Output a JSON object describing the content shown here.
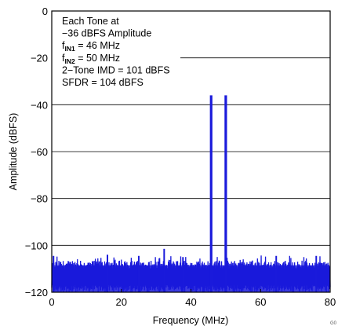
{
  "chart_data": {
    "type": "line",
    "xlabel": "Frequency (MHz)",
    "ylabel": "Amplitude (dBFS)",
    "xlim": [
      0,
      80
    ],
    "ylim": [
      -120,
      0
    ],
    "xticks": [
      0,
      20,
      40,
      60,
      80
    ],
    "yticks": [
      0,
      -20,
      -40,
      -60,
      -80,
      -100,
      -120
    ],
    "grid": true,
    "annotation": [
      {
        "base": "Each Tone at",
        "sub": "",
        "rest": ""
      },
      {
        "base": "−36 dBFS Amplitude",
        "sub": "",
        "rest": ""
      },
      {
        "base": "f",
        "sub": "IN1",
        "rest": " = 46 MHz"
      },
      {
        "base": "f",
        "sub": "IN2",
        "rest": " = 50 MHz"
      },
      {
        "base": "2−Tone IMD = 101 dBFS",
        "sub": "",
        "rest": ""
      },
      {
        "base": "SFDR = 104 dBFS",
        "sub": "",
        "rest": ""
      }
    ],
    "series": [
      {
        "color": "#1a1adb",
        "noise_floor": [
          -110,
          -105
        ],
        "peaks": [
          {
            "x": 45.8,
            "y": -36
          },
          {
            "x": 50.0,
            "y": -36
          },
          {
            "x": 32.3,
            "y": -101.5
          },
          {
            "x": 0.5,
            "y": -104.5
          },
          {
            "x": 16.0,
            "y": -104
          },
          {
            "x": 25.0,
            "y": -104.5
          },
          {
            "x": 37.7,
            "y": -105
          },
          {
            "x": 64.5,
            "y": -104.5
          },
          {
            "x": 76.0,
            "y": -104.5
          }
        ]
      }
    ],
    "corner_label": "G0"
  }
}
